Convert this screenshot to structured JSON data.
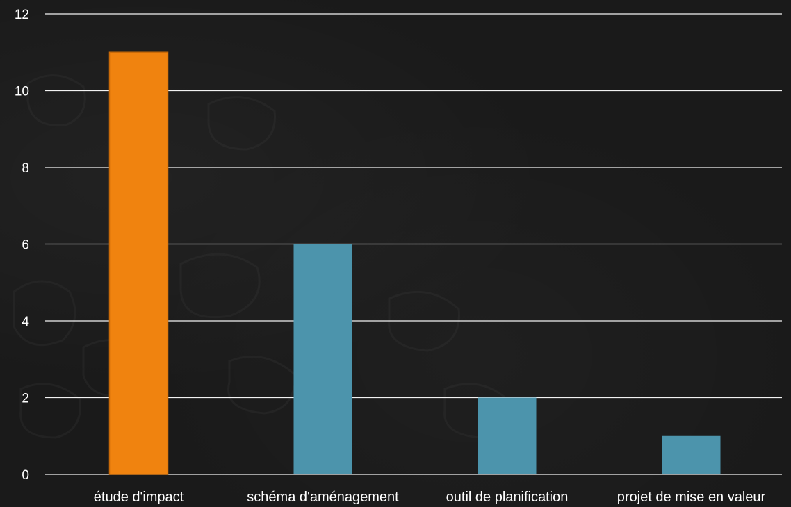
{
  "chart_data": {
    "type": "bar",
    "categories": [
      "étude d'impact",
      "schéma d'aménagement",
      "outil de planification",
      "projet de mise en valeur"
    ],
    "series": [
      {
        "values": [
          11,
          6,
          2,
          1
        ]
      }
    ],
    "bar_colors": [
      "#f0830f",
      "#4c94ac",
      "#4c94ac",
      "#4c94ac"
    ],
    "ylim": [
      0,
      12
    ],
    "yticks": [
      0,
      2,
      4,
      6,
      8,
      10,
      12
    ],
    "grid": true,
    "title": "",
    "xlabel": "",
    "ylabel": ""
  }
}
